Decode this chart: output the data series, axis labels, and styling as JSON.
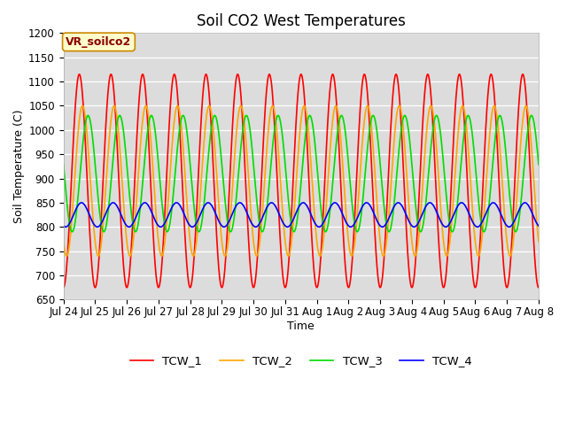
{
  "title": "Soil CO2 West Temperatures",
  "xlabel": "Time",
  "ylabel": "Soil Temperature (C)",
  "ylim": [
    650,
    1160
  ],
  "annotation": "VR_soilco2",
  "series": [
    "TCW_1",
    "TCW_2",
    "TCW_3",
    "TCW_4"
  ],
  "colors": [
    "#ff0000",
    "#ffa500",
    "#00dd00",
    "#0000ff"
  ],
  "xtick_labels": [
    "Jul 24",
    "Jul 25",
    "Jul 26",
    "Jul 27",
    "Jul 28",
    "Jul 29",
    "Jul 30",
    "Jul 31",
    "Aug 1",
    "Aug 2",
    "Aug 3",
    "Aug 4",
    "Aug 5",
    "Aug 6",
    "Aug 7",
    "Aug 8"
  ],
  "bg_color": "#dcdcdc",
  "fig_bg": "#ffffff",
  "linewidth": 1.2,
  "n_points": 1500,
  "days": 15,
  "TCW1_amp": 220,
  "TCW1_mean": 895,
  "TCW1_phase_rad": 1.57,
  "TCW2_amp": 155,
  "TCW2_mean": 895,
  "TCW2_phase_rad": 2.2,
  "TCW3_amp": 120,
  "TCW3_mean": 910,
  "TCW3_phase_rad": 3.3,
  "TCW4_amp": 25,
  "TCW4_mean": 825,
  "TCW4_phase_rad": 2.0,
  "period_hours": 24
}
